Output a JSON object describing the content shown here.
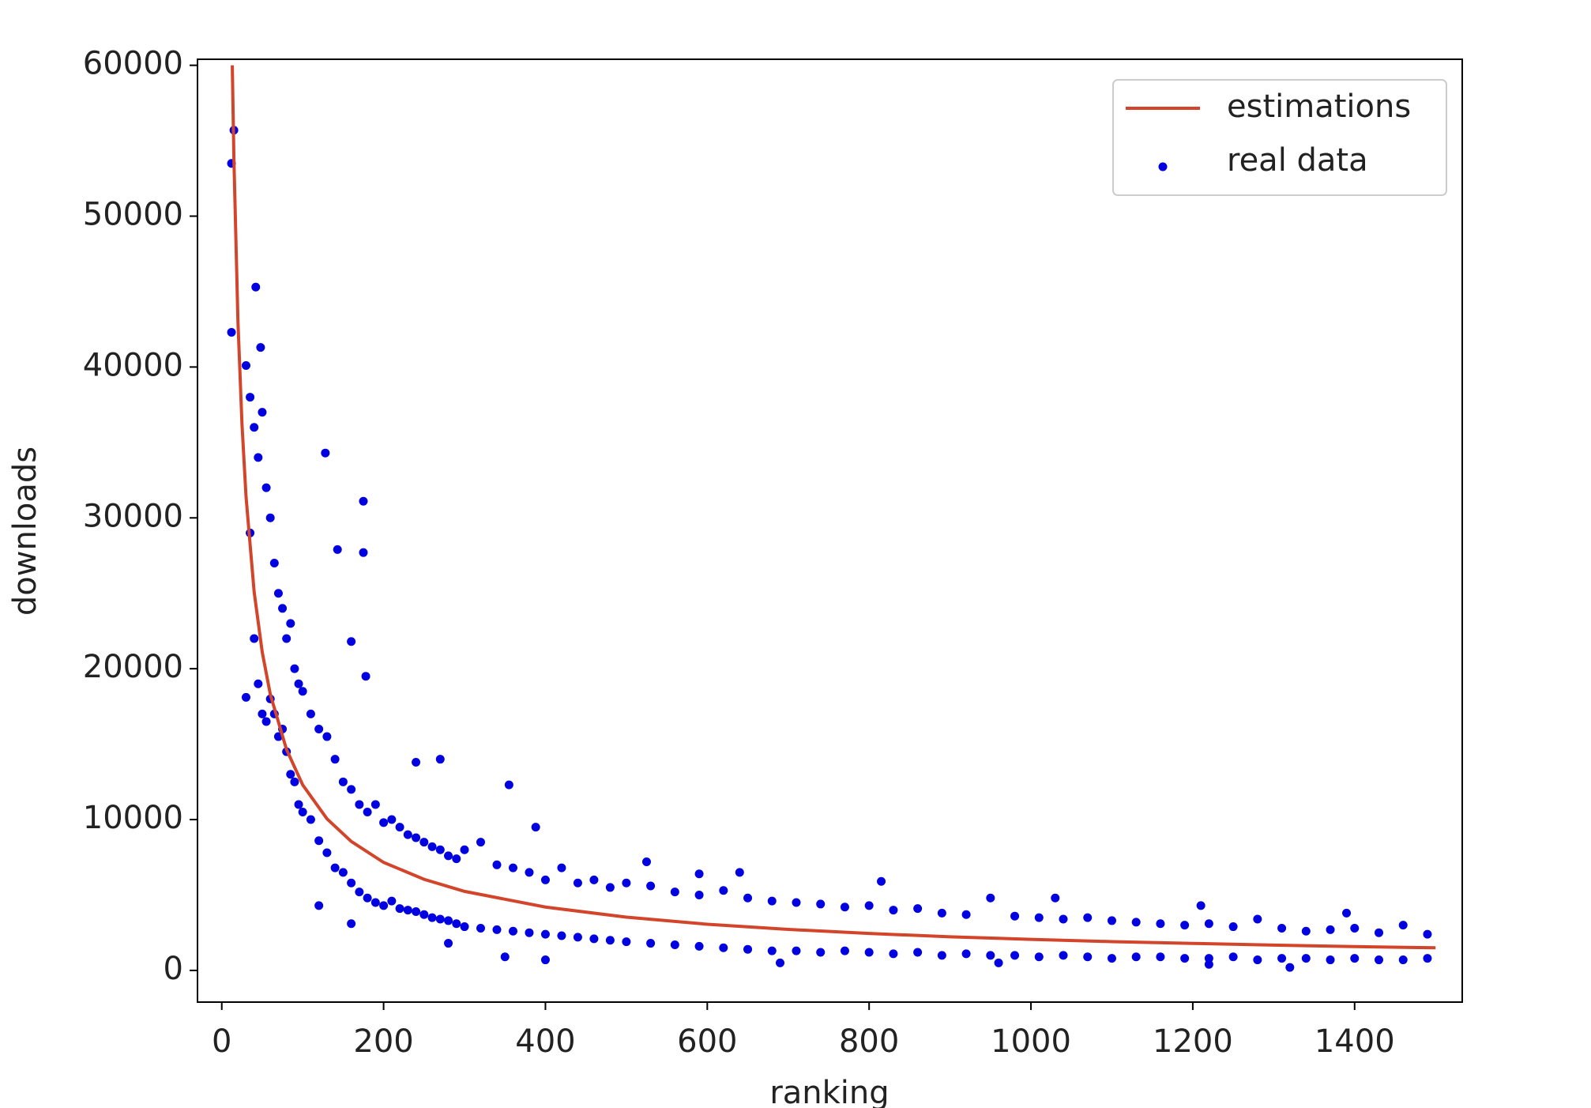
{
  "chart_data": {
    "type": "scatter",
    "xlabel": "ranking",
    "ylabel": "downloads",
    "xlim": [
      -30,
      1533
    ],
    "ylim": [
      -2100,
      60400
    ],
    "xticks": [
      0,
      200,
      400,
      600,
      800,
      1000,
      1200,
      1400
    ],
    "yticks": [
      0,
      10000,
      20000,
      30000,
      40000,
      50000,
      60000
    ],
    "legend": "upper right",
    "series": [
      {
        "name": "estimations",
        "type": "line",
        "color": "#d2452b",
        "x": [
          13,
          15,
          20,
          25,
          30,
          40,
          50,
          60,
          80,
          100,
          130,
          160,
          200,
          250,
          300,
          400,
          500,
          600,
          700,
          800,
          900,
          1000,
          1100,
          1200,
          1300,
          1400,
          1500
        ],
        "values": [
          60000,
          53800,
          43000,
          36200,
          31400,
          25100,
          21100,
          18300,
          14650,
          12300,
          10050,
          8550,
          7160,
          6040,
          5240,
          4200,
          3530,
          3060,
          2720,
          2450,
          2230,
          2060,
          1910,
          1790,
          1680,
          1580,
          1500
        ]
      },
      {
        "name": "real data",
        "type": "scatter",
        "color": "#0000e0",
        "x": [
          12,
          15,
          12,
          42,
          48,
          30,
          128,
          175,
          143,
          175,
          160,
          178,
          30,
          355,
          240,
          270,
          388,
          120,
          160,
          280,
          350,
          400,
          690,
          960,
          1220,
          1320,
          1390,
          815,
          1210,
          1030,
          590,
          525,
          640,
          35,
          35,
          40,
          40,
          45,
          45,
          50,
          50,
          55,
          55,
          60,
          60,
          65,
          65,
          70,
          70,
          75,
          75,
          80,
          80,
          85,
          85,
          90,
          90,
          95,
          95,
          100,
          100,
          110,
          110,
          120,
          120,
          130,
          130,
          140,
          140,
          150,
          150,
          160,
          160,
          170,
          170,
          180,
          180,
          190,
          190,
          200,
          200,
          210,
          210,
          220,
          220,
          230,
          230,
          240,
          240,
          250,
          250,
          260,
          260,
          270,
          270,
          280,
          280,
          290,
          290,
          300,
          300,
          320,
          320,
          340,
          340,
          360,
          360,
          380,
          380,
          400,
          400,
          420,
          420,
          440,
          440,
          460,
          460,
          480,
          480,
          500,
          500,
          530,
          530,
          560,
          560,
          590,
          590,
          620,
          620,
          650,
          650,
          680,
          680,
          710,
          710,
          740,
          740,
          770,
          770,
          800,
          800,
          830,
          830,
          860,
          860,
          890,
          890,
          920,
          920,
          950,
          950,
          980,
          980,
          1010,
          1010,
          1040,
          1040,
          1070,
          1070,
          1100,
          1100,
          1130,
          1130,
          1160,
          1160,
          1190,
          1190,
          1220,
          1220,
          1250,
          1250,
          1280,
          1280,
          1310,
          1310,
          1340,
          1340,
          1370,
          1370,
          1400,
          1400,
          1430,
          1430,
          1460,
          1460,
          1490,
          1490
        ],
        "values": [
          53500,
          55700,
          42300,
          45300,
          41300,
          40100,
          34300,
          31100,
          27900,
          27700,
          21800,
          19500,
          18100,
          12300,
          13800,
          14000,
          9500,
          4300,
          3100,
          1800,
          900,
          700,
          500,
          500,
          400,
          200,
          3800,
          5900,
          4300,
          4800,
          6400,
          7200,
          6500,
          38000,
          29000,
          36000,
          22000,
          34000,
          19000,
          37000,
          17000,
          32000,
          16500,
          30000,
          18000,
          27000,
          17000,
          25000,
          15500,
          24000,
          16000,
          22000,
          14500,
          23000,
          13000,
          20000,
          12500,
          19000,
          11000,
          18500,
          10500,
          17000,
          10000,
          16000,
          8600,
          15500,
          7800,
          14000,
          6800,
          12500,
          6500,
          12000,
          5800,
          11000,
          5200,
          10500,
          4800,
          11000,
          4500,
          9800,
          4300,
          10000,
          4600,
          9500,
          4100,
          9000,
          4000,
          8800,
          3900,
          8500,
          3700,
          8200,
          3500,
          8000,
          3400,
          7600,
          3300,
          7400,
          3100,
          8000,
          2900,
          8500,
          2800,
          7000,
          2700,
          6800,
          2600,
          6500,
          2500,
          6000,
          2400,
          6800,
          2300,
          5800,
          2200,
          6000,
          2100,
          5500,
          2000,
          5800,
          1900,
          5600,
          1800,
          5200,
          1700,
          5000,
          1600,
          5300,
          1500,
          4800,
          1400,
          4600,
          1300,
          4500,
          1300,
          4400,
          1200,
          4200,
          1300,
          4300,
          1200,
          4000,
          1100,
          4100,
          1200,
          3800,
          1000,
          3700,
          1100,
          4800,
          1000,
          3600,
          1000,
          3500,
          900,
          3400,
          1000,
          3500,
          900,
          3300,
          800,
          3200,
          900,
          3100,
          900,
          3000,
          800,
          3100,
          800,
          2900,
          900,
          3400,
          700,
          2800,
          800,
          2600,
          800,
          2700,
          700,
          2800,
          800,
          2500,
          700,
          3000,
          700,
          2400,
          800
        ]
      }
    ]
  }
}
